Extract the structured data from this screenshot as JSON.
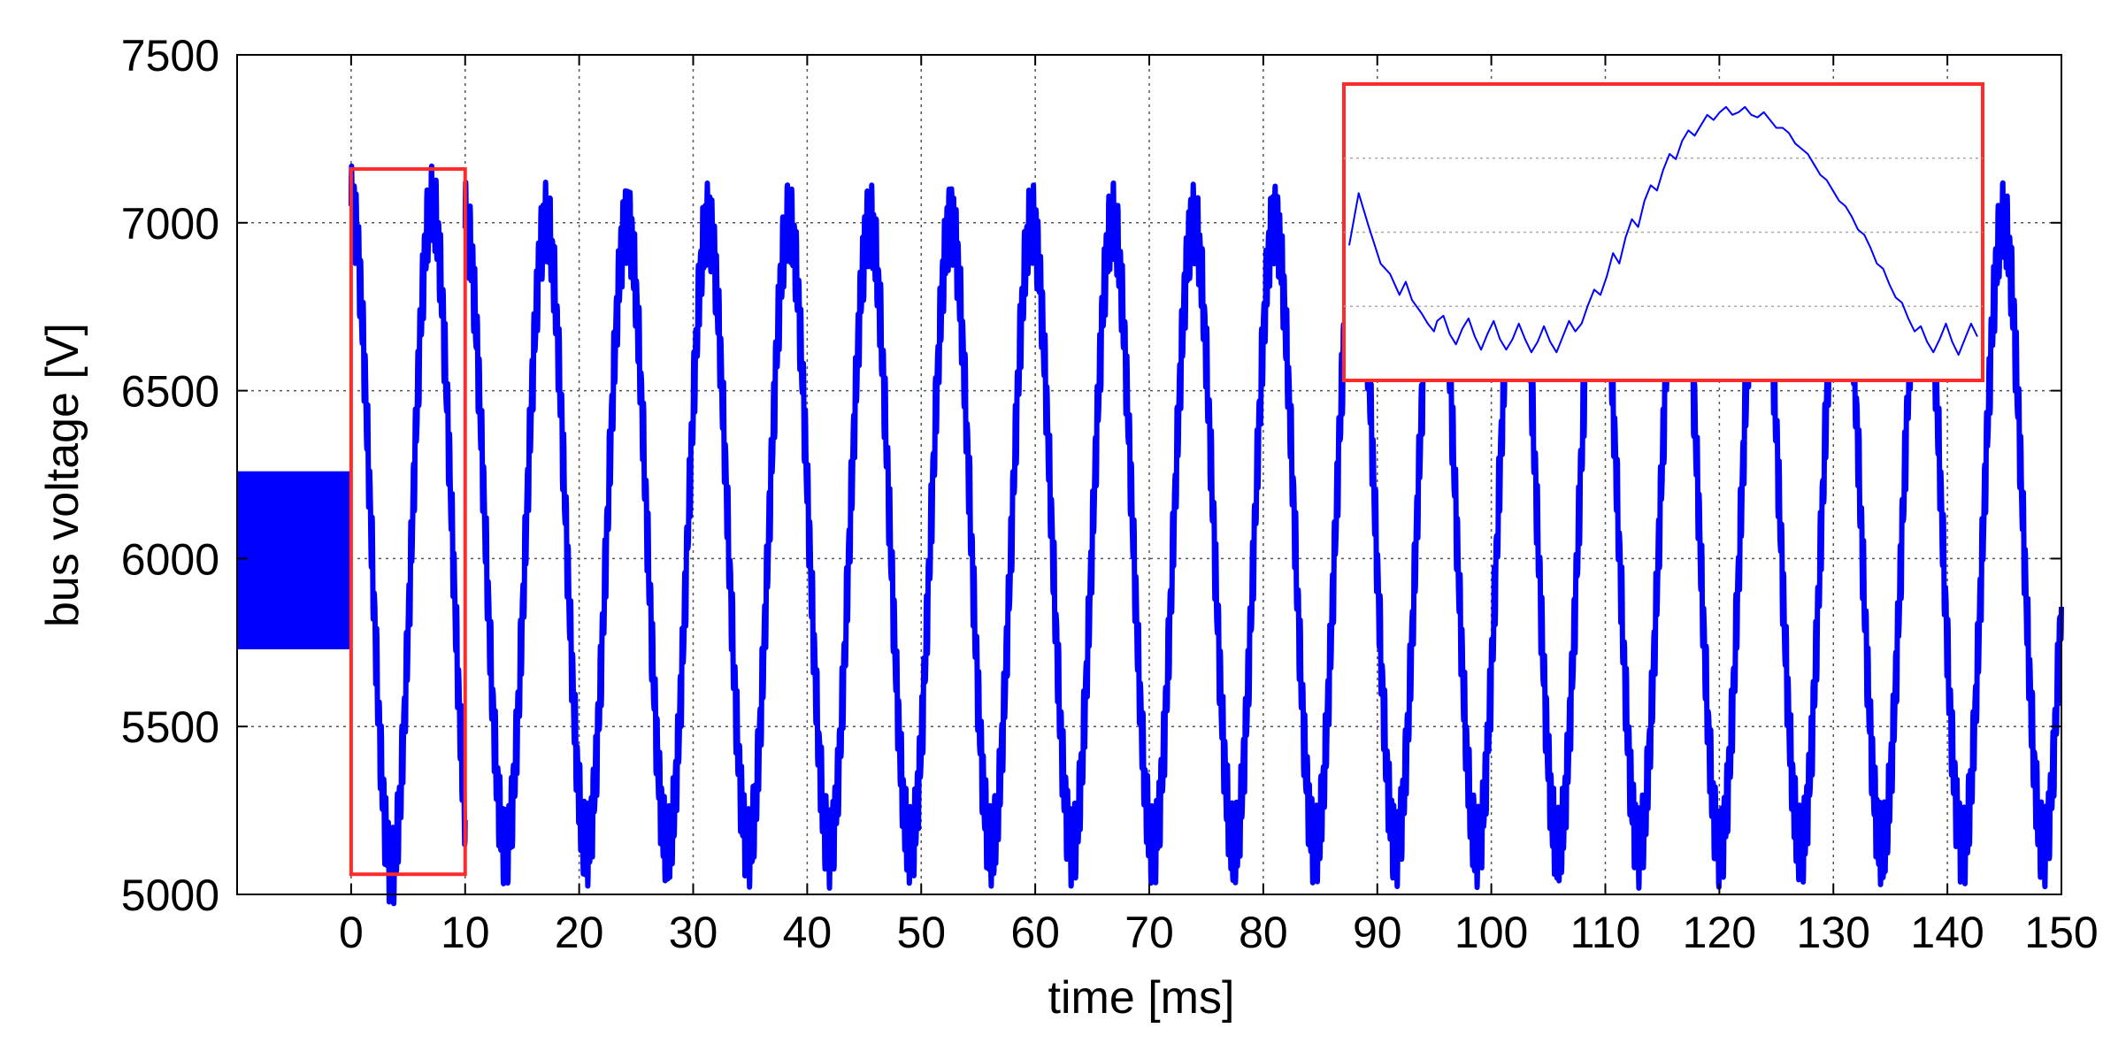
{
  "chart_data": {
    "type": "line",
    "title": "",
    "xlabel": "time [ms]",
    "ylabel": "bus voltage [V]",
    "xlim": [
      -10,
      150
    ],
    "ylim": [
      5000,
      7500
    ],
    "x_ticks": [
      0,
      10,
      20,
      30,
      40,
      50,
      60,
      70,
      80,
      90,
      100,
      110,
      120,
      130,
      140,
      150
    ],
    "y_ticks": [
      5000,
      5500,
      6000,
      6500,
      7000,
      7500
    ],
    "grid": true,
    "colors": {
      "series": "#0000ff",
      "highlight": "#ff2a2a",
      "grid": "#555555"
    },
    "series": [
      {
        "segments": [
          {
            "x_start": -10,
            "x_end": 0,
            "min": 5730,
            "max": 6260,
            "shape": "band"
          },
          {
            "x_start": 0,
            "x_end": 10,
            "period_ms": 7.1,
            "mean": 6065,
            "peak": 7050,
            "trough": 5080,
            "ripple": 90,
            "shape": "oscillation"
          },
          {
            "x_start": 10,
            "x_end": 150,
            "period_ms": 7.1,
            "mean": 6070,
            "peak": 7000,
            "trough": 5140,
            "ripple": 90,
            "shape": "oscillation"
          }
        ]
      }
    ],
    "highlight_box": {
      "x_range": [
        0,
        10
      ],
      "y_range": [
        5060,
        7160
      ]
    },
    "inset": {
      "description": "zoomed view of one cycle inside the highlight box",
      "points": [
        [
          0,
          0.45
        ],
        [
          0.015,
          0.65
        ],
        [
          0.03,
          0.53
        ],
        [
          0.05,
          0.38
        ],
        [
          0.065,
          0.34
        ],
        [
          0.08,
          0.26
        ],
        [
          0.09,
          0.31
        ],
        [
          0.1,
          0.24
        ],
        [
          0.115,
          0.19
        ],
        [
          0.125,
          0.15
        ],
        [
          0.135,
          0.12
        ],
        [
          0.14,
          0.16
        ],
        [
          0.15,
          0.18
        ],
        [
          0.16,
          0.11
        ],
        [
          0.17,
          0.07
        ],
        [
          0.18,
          0.13
        ],
        [
          0.19,
          0.17
        ],
        [
          0.2,
          0.1
        ],
        [
          0.21,
          0.05
        ],
        [
          0.22,
          0.11
        ],
        [
          0.23,
          0.16
        ],
        [
          0.24,
          0.09
        ],
        [
          0.25,
          0.05
        ],
        [
          0.26,
          0.09
        ],
        [
          0.27,
          0.15
        ],
        [
          0.28,
          0.09
        ],
        [
          0.29,
          0.04
        ],
        [
          0.3,
          0.08
        ],
        [
          0.31,
          0.14
        ],
        [
          0.32,
          0.08
        ],
        [
          0.33,
          0.04
        ],
        [
          0.34,
          0.1
        ],
        [
          0.35,
          0.16
        ],
        [
          0.36,
          0.12
        ],
        [
          0.37,
          0.15
        ],
        [
          0.38,
          0.22
        ],
        [
          0.39,
          0.28
        ],
        [
          0.4,
          0.26
        ],
        [
          0.41,
          0.33
        ],
        [
          0.42,
          0.42
        ],
        [
          0.43,
          0.38
        ],
        [
          0.44,
          0.48
        ],
        [
          0.45,
          0.55
        ],
        [
          0.46,
          0.52
        ],
        [
          0.47,
          0.62
        ],
        [
          0.48,
          0.68
        ],
        [
          0.49,
          0.66
        ],
        [
          0.5,
          0.74
        ],
        [
          0.51,
          0.8
        ],
        [
          0.52,
          0.78
        ],
        [
          0.53,
          0.85
        ],
        [
          0.54,
          0.89
        ],
        [
          0.55,
          0.87
        ],
        [
          0.56,
          0.91
        ],
        [
          0.57,
          0.95
        ],
        [
          0.58,
          0.93
        ],
        [
          0.59,
          0.96
        ],
        [
          0.6,
          0.98
        ],
        [
          0.61,
          0.95
        ],
        [
          0.62,
          0.96
        ],
        [
          0.63,
          0.98
        ],
        [
          0.64,
          0.95
        ],
        [
          0.65,
          0.94
        ],
        [
          0.66,
          0.96
        ],
        [
          0.67,
          0.93
        ],
        [
          0.68,
          0.9
        ],
        [
          0.69,
          0.9
        ],
        [
          0.7,
          0.88
        ],
        [
          0.71,
          0.84
        ],
        [
          0.72,
          0.82
        ],
        [
          0.73,
          0.8
        ],
        [
          0.74,
          0.76
        ],
        [
          0.75,
          0.72
        ],
        [
          0.76,
          0.7
        ],
        [
          0.77,
          0.66
        ],
        [
          0.78,
          0.62
        ],
        [
          0.79,
          0.6
        ],
        [
          0.8,
          0.56
        ],
        [
          0.81,
          0.51
        ],
        [
          0.82,
          0.49
        ],
        [
          0.83,
          0.44
        ],
        [
          0.84,
          0.38
        ],
        [
          0.85,
          0.36
        ],
        [
          0.86,
          0.3
        ],
        [
          0.87,
          0.25
        ],
        [
          0.88,
          0.23
        ],
        [
          0.89,
          0.17
        ],
        [
          0.9,
          0.12
        ],
        [
          0.91,
          0.14
        ],
        [
          0.92,
          0.08
        ],
        [
          0.93,
          0.04
        ],
        [
          0.94,
          0.09
        ],
        [
          0.95,
          0.15
        ],
        [
          0.96,
          0.08
        ],
        [
          0.97,
          0.03
        ],
        [
          0.98,
          0.09
        ],
        [
          0.99,
          0.15
        ],
        [
          1.0,
          0.1
        ]
      ],
      "grid_rows": 4
    }
  }
}
